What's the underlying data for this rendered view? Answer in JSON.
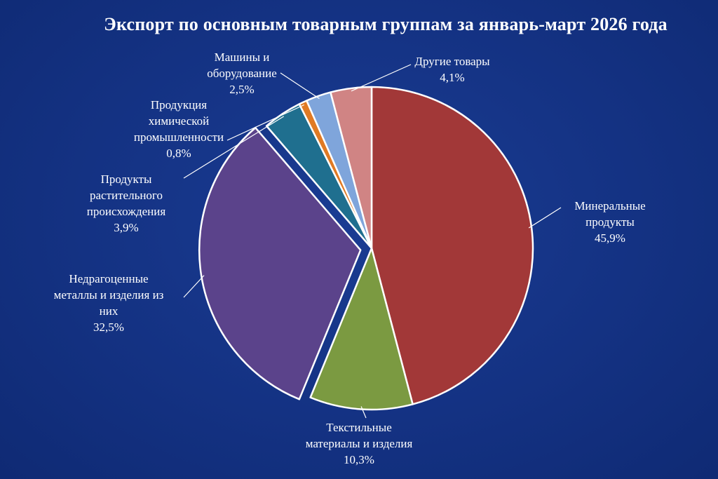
{
  "chart_data": {
    "type": "pie",
    "title": "Экспорт по основным товарным группам за январь-март 2026 года",
    "slices": [
      {
        "name": "Минеральные продукты",
        "label_lines": [
          "Минеральные",
          "продукты"
        ],
        "value_text": "45,9%",
        "value": 45.9,
        "color": "#a23838",
        "exploded": false
      },
      {
        "name": "Текстильные материалы и изделия",
        "label_lines": [
          "Текстильные",
          "материалы и изделия"
        ],
        "value_text": "10,3%",
        "value": 10.3,
        "color": "#7b9a41",
        "exploded": false
      },
      {
        "name": "Недрагоценные металлы и изделия из них",
        "label_lines": [
          "Недрагоценные",
          "металлы и изделия из",
          "них"
        ],
        "value_text": "32,5%",
        "value": 32.5,
        "color": "#5b438b",
        "exploded": true
      },
      {
        "name": "Продукты растительного происхождения",
        "label_lines": [
          "Продукты",
          "растительного",
          "происхождения"
        ],
        "value_text": "3,9%",
        "value": 3.9,
        "color": "#1f6f8f",
        "exploded": false
      },
      {
        "name": "Продукция химической промышленности",
        "label_lines": [
          "Продукция",
          "химической",
          "промышленности"
        ],
        "value_text": "0,8%",
        "value": 0.8,
        "color": "#e07a24",
        "exploded": false
      },
      {
        "name": "Машины и оборудование",
        "label_lines": [
          "Машины и",
          "оборудование"
        ],
        "value_text": "2,5%",
        "value": 2.5,
        "color": "#7fa5db",
        "exploded": false
      },
      {
        "name": "Другие товары",
        "label_lines": [
          "Другие товары"
        ],
        "value_text": "4,1%",
        "value": 4.1,
        "color": "#d08484",
        "exploded": false
      }
    ],
    "legend": "none"
  }
}
